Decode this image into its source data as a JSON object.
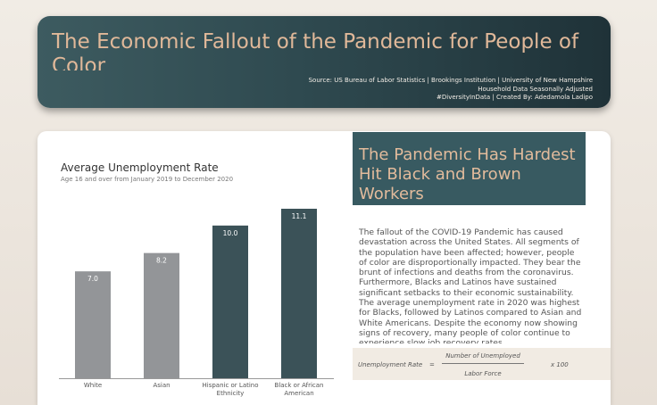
{
  "header": {
    "title": "The Economic Fallout of the Pandemic for People of Color",
    "source_lines": [
      "Source: US Bureau of Labor Statistics | Brookings Institution | University of New Hampshire",
      "Household Data Seasonally Adjusted",
      "#DiversityInData | Created By: Adedamola Ladipo"
    ]
  },
  "panel": {
    "title": "The Pandemic Has Hardest Hit Black and Brown Workers",
    "body": "The fallout of the COVID-19 Pandemic has caused devastation across the United States. All segments of the population have been affected; however, people of color are disproportionally impacted. They bear the brunt of infections and deaths from the coronavirus. Furthermore, Blacks and Latinos have sustained significant setbacks to their economic sustainability. The average unemployment rate in 2020 was highest for Blacks, followed by Latinos compared to Asian and White Americans. Despite the economy now showing signs of recovery, many people of color continue to experience slow job recovery rates."
  },
  "formula": {
    "lhs": "Unemployment Rate",
    "equals": "=",
    "numerator": "Number of Unemployed",
    "denominator": "Labor Force",
    "multiplier": "x 100"
  },
  "colors": {
    "gray_bar": "#939598",
    "teal_bar": "#3b5258",
    "label_light": "#ffffff"
  },
  "chart_data": {
    "type": "bar",
    "title": "Average Unemployment Rate",
    "subtitle": "Age 16 and over from January 2019 to December 2020",
    "categories": [
      "White",
      "Asian",
      "Hispanic or Latino Ethnicity",
      "Black or African American"
    ],
    "category_lines": [
      [
        "White"
      ],
      [
        "Asian"
      ],
      [
        "Hispanic or Latino",
        "Ethnicity"
      ],
      [
        "Black or African",
        "American"
      ]
    ],
    "values": [
      7.0,
      8.2,
      10.0,
      11.1
    ],
    "value_labels": [
      "7.0",
      "8.2",
      "10.0",
      "11.1"
    ],
    "bar_colors": [
      "#939598",
      "#939598",
      "#3b5258",
      "#3b5258"
    ],
    "ylim": [
      0,
      11.1
    ],
    "grid": false,
    "legend": "none"
  }
}
